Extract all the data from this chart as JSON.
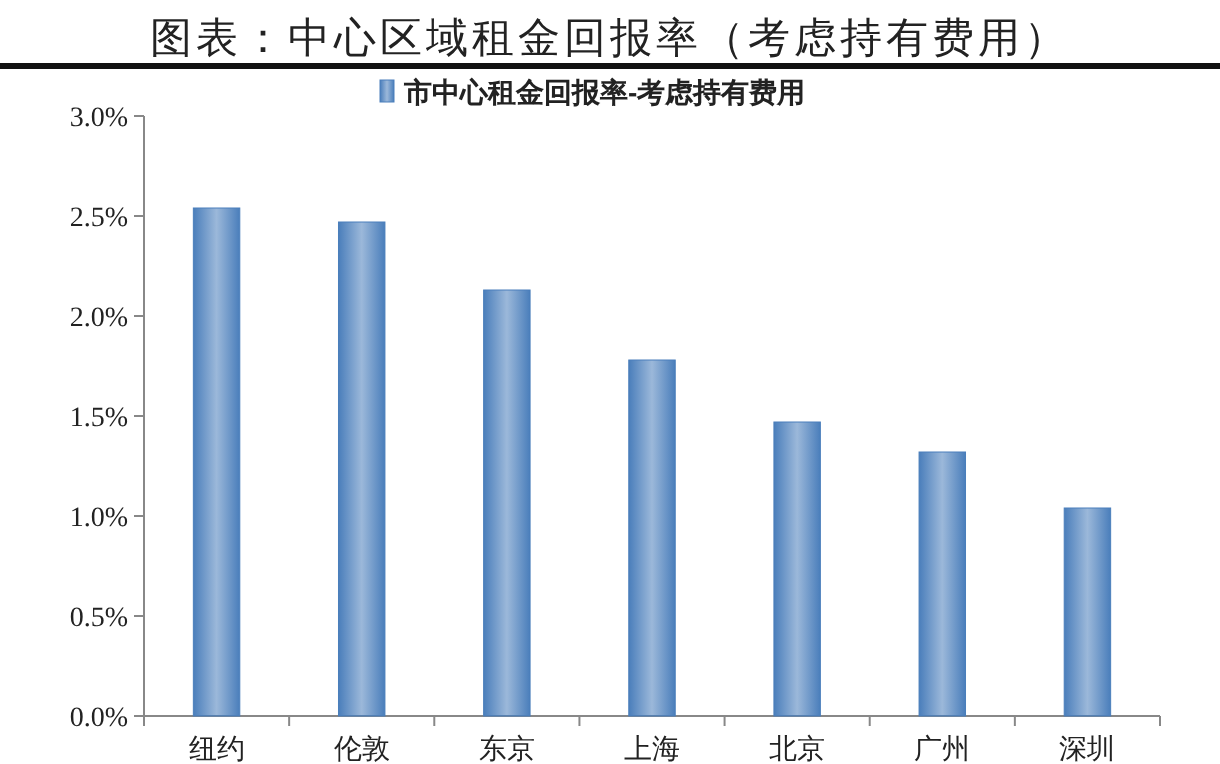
{
  "chart_data": {
    "type": "bar",
    "title": "图表：中心区域租金回报率（考虑持有费用）",
    "categories": [
      "纽约",
      "伦敦",
      "东京",
      "上海",
      "北京",
      "广州",
      "深圳"
    ],
    "series": [
      {
        "name": "市中心租金回报率-考虑持有费用",
        "color": "#4a7ebb",
        "values": [
          2.54,
          2.47,
          2.13,
          1.78,
          1.47,
          1.32,
          1.04
        ]
      }
    ],
    "ylim": [
      0,
      3
    ],
    "yticks": [
      {
        "value": 0,
        "label": "0.0%"
      },
      {
        "value": 0.5,
        "label": "0.5%"
      },
      {
        "value": 1,
        "label": "1.0%"
      },
      {
        "value": 1.5,
        "label": "1.5%"
      },
      {
        "value": 2,
        "label": "2.0%"
      },
      {
        "value": 2.5,
        "label": "2.5%"
      },
      {
        "value": 3,
        "label": "3.0%"
      }
    ],
    "legend": "top",
    "grid": false
  }
}
